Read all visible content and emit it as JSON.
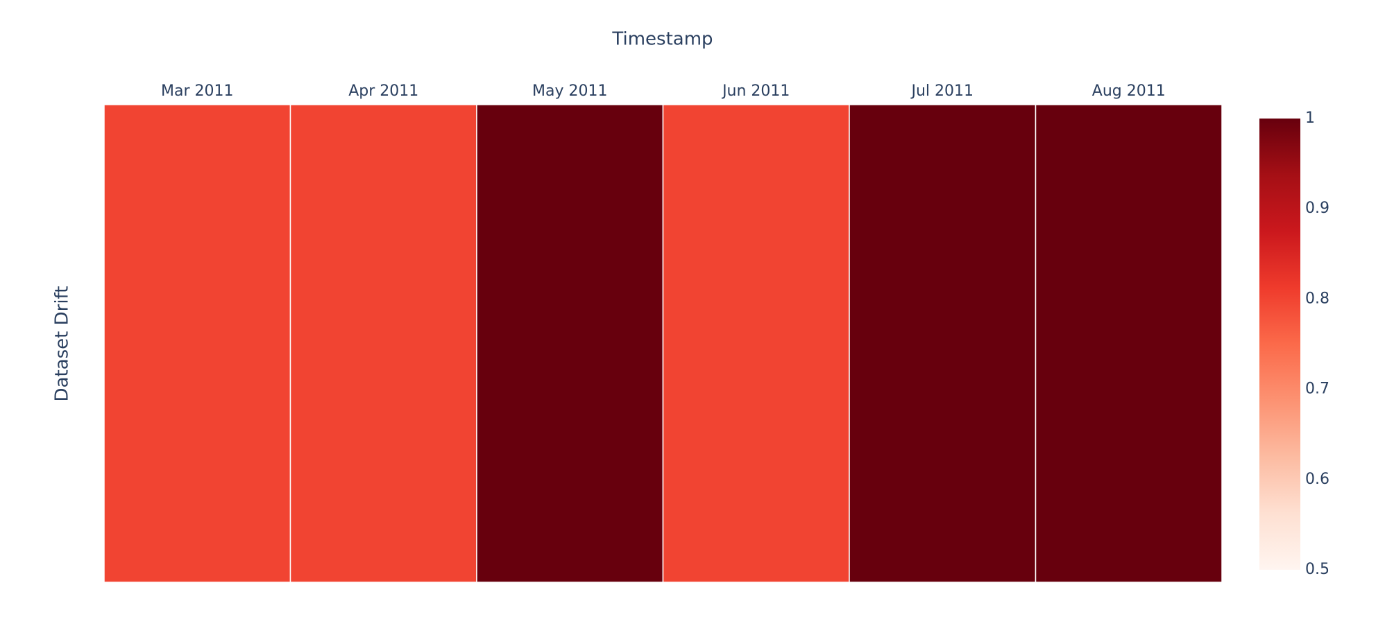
{
  "chart_data": {
    "type": "heatmap",
    "x_title": "Timestamp",
    "y_title": "Dataset Drift",
    "categories": [
      "Mar 2011",
      "Apr 2011",
      "May 2011",
      "Jun 2011",
      "Jul 2011",
      "Aug 2011"
    ],
    "values": [
      0.8,
      0.8,
      1,
      0.8,
      1,
      1
    ],
    "colorscale": [
      "rgb(255,245,240)",
      "rgb(254,224,210)",
      "rgb(252,187,161)",
      "rgb(252,146,114)",
      "rgb(251,106,74)",
      "rgb(239,59,44)",
      "rgb(203,24,29)",
      "rgb(165,15,21)",
      "rgb(103,0,13)"
    ],
    "zlim": [
      0.5,
      1
    ],
    "zticks": [
      0.5,
      0.6,
      0.7,
      0.8,
      0.9,
      1
    ]
  }
}
